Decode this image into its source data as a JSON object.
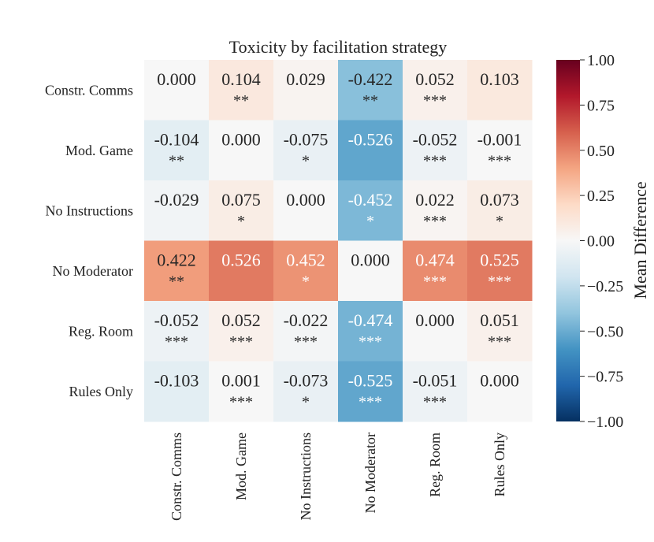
{
  "chart_data": {
    "type": "heatmap",
    "title": "Toxicity by facilitation strategy",
    "xlabel": "",
    "ylabel": "",
    "rows": [
      "Constr. Comms",
      "Mod. Game",
      "No Instructions",
      "No Moderator",
      "Reg. Room",
      "Rules Only"
    ],
    "columns": [
      "Constr. Comms",
      "Mod. Game",
      "No Instructions",
      "No Moderator",
      "Reg. Room",
      "Rules Only"
    ],
    "values": [
      [
        0.0,
        0.104,
        0.029,
        -0.422,
        0.052,
        0.103
      ],
      [
        -0.104,
        0.0,
        -0.075,
        -0.526,
        -0.052,
        -0.001
      ],
      [
        -0.029,
        0.075,
        0.0,
        -0.452,
        0.022,
        0.073
      ],
      [
        0.422,
        0.526,
        0.452,
        0.0,
        0.474,
        0.525
      ],
      [
        -0.052,
        0.052,
        -0.022,
        -0.474,
        0.0,
        0.051
      ],
      [
        -0.103,
        0.001,
        -0.073,
        -0.525,
        -0.051,
        0.0
      ]
    ],
    "labels": [
      [
        "0.000",
        "0.104",
        "0.029",
        "-0.422",
        "0.052",
        "0.103"
      ],
      [
        "-0.104",
        "0.000",
        "-0.075",
        "-0.526",
        "-0.052",
        "-0.001"
      ],
      [
        "-0.029",
        "0.075",
        "0.000",
        "-0.452",
        "0.022",
        "0.073"
      ],
      [
        "0.422",
        "0.526",
        "0.452",
        "0.000",
        "0.474",
        "0.525"
      ],
      [
        "-0.052",
        "0.052",
        "-0.022",
        "-0.474",
        "0.000",
        "0.051"
      ],
      [
        "-0.103",
        "0.001",
        "-0.073",
        "-0.525",
        "-0.051",
        "0.000"
      ]
    ],
    "significance": [
      [
        "",
        "**",
        "",
        "**",
        "***",
        ""
      ],
      [
        "**",
        "",
        "*",
        "",
        "***",
        "***"
      ],
      [
        "",
        "*",
        "",
        "*",
        "***",
        "*"
      ],
      [
        "**",
        "",
        "*",
        "",
        "***",
        "***"
      ],
      [
        "***",
        "***",
        "***",
        "***",
        "",
        "***"
      ],
      [
        "",
        "***",
        "*",
        "***",
        "***",
        ""
      ]
    ],
    "colormap": "RdBu_r",
    "colormap_stops": [
      "#053061",
      "#2166ac",
      "#4393c3",
      "#92c5de",
      "#d1e5f0",
      "#f7f7f7",
      "#fddbc7",
      "#f4a582",
      "#d6604d",
      "#b2182b",
      "#67001f"
    ],
    "vmin": -1.0,
    "vmax": 1.0,
    "colorbar": {
      "label": "Mean Difference",
      "ticks": [
        1.0,
        0.75,
        0.5,
        0.25,
        0.0,
        -0.25,
        -0.5,
        -0.75,
        -1.0
      ],
      "tick_labels": [
        "1.00",
        "0.75",
        "0.50",
        "0.25",
        "0.00",
        "−0.25",
        "−0.50",
        "−0.75",
        "−1.00"
      ]
    }
  }
}
